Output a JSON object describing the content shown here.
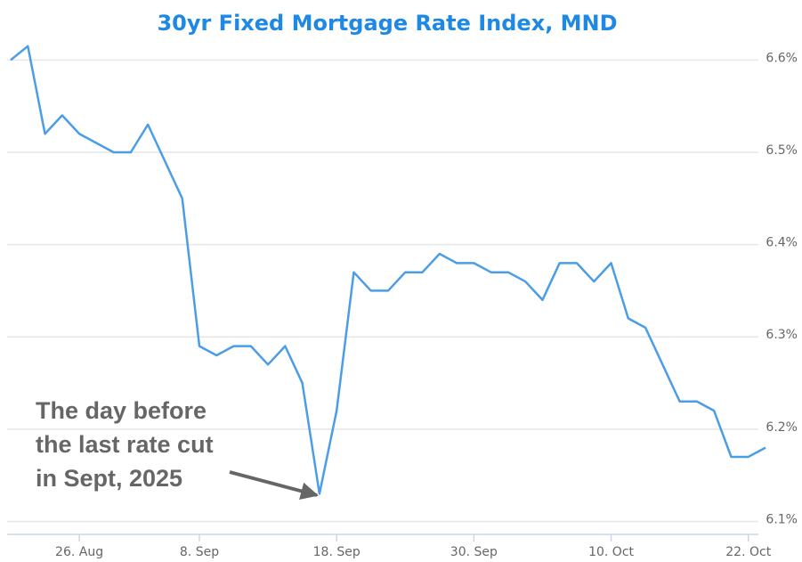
{
  "chart_data": {
    "type": "line",
    "title": "30yr Fixed Mortgage Rate Index, MND",
    "categories": [
      null,
      null,
      null,
      null,
      "26. Aug",
      null,
      null,
      null,
      null,
      null,
      null,
      "8. Sep",
      null,
      null,
      null,
      null,
      null,
      null,
      null,
      "18. Sep",
      null,
      null,
      null,
      null,
      null,
      null,
      null,
      "30. Sep",
      null,
      null,
      null,
      null,
      null,
      null,
      null,
      "10. Oct",
      null,
      null,
      null,
      null,
      null,
      null,
      null,
      "22. Oct",
      null
    ],
    "series": [
      {
        "name": "30yr Fixed Mortgage Rate Index, MND",
        "color": "#4a9de6",
        "values": [
          6.6,
          6.615,
          6.52,
          6.54,
          6.52,
          6.51,
          6.5,
          6.5,
          6.53,
          6.49,
          6.45,
          6.29,
          6.28,
          6.29,
          6.29,
          6.27,
          6.29,
          6.25,
          6.13,
          6.22,
          6.37,
          6.35,
          6.35,
          6.37,
          6.37,
          6.39,
          6.38,
          6.38,
          6.37,
          6.37,
          6.36,
          6.34,
          6.38,
          6.38,
          6.36,
          6.38,
          6.32,
          6.31,
          6.27,
          6.23,
          6.23,
          6.22,
          6.17,
          6.17,
          6.18
        ]
      }
    ],
    "ylim": [
      6.086,
      6.665
    ],
    "yticks": [
      {
        "value": 6.1,
        "label": "6.1%"
      },
      {
        "value": 6.2,
        "label": "6.2%"
      },
      {
        "value": 6.3,
        "label": "6.3%"
      },
      {
        "value": 6.4,
        "label": "6.4%"
      },
      {
        "value": 6.5,
        "label": "6.5%"
      },
      {
        "value": 6.6,
        "label": "6.6%"
      }
    ],
    "grid": true,
    "annotation": [
      "The day before",
      "the last rate cut",
      "in Sept, 2025"
    ]
  }
}
